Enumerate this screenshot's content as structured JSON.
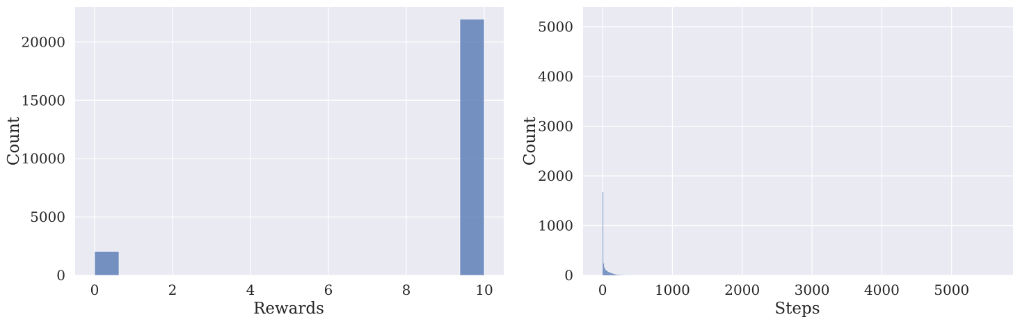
{
  "style": {
    "panel_bg": "#eaeaf2",
    "grid_color": "#ffffff",
    "bar_color": "#4c72b0",
    "bar_opacity": 0.75
  },
  "chart_data": [
    {
      "type": "bar",
      "subtype": "histogram",
      "title": "",
      "xlabel": "Rewards",
      "ylabel": "Count",
      "xlim": [
        -0.5,
        10.5
      ],
      "ylim": [
        0,
        23000
      ],
      "xticks": [
        0,
        2,
        4,
        6,
        8,
        10
      ],
      "yticks": [
        0,
        5000,
        10000,
        15000,
        20000
      ],
      "grid": true,
      "bins": [
        {
          "x0": 0.0,
          "x1": 0.625,
          "count": 2050
        },
        {
          "x0": 9.375,
          "x1": 10.0,
          "count": 21950
        }
      ]
    },
    {
      "type": "bar",
      "subtype": "histogram",
      "title": "",
      "xlabel": "Steps",
      "ylabel": "Count",
      "xlim": [
        -280,
        5880
      ],
      "ylim": [
        0,
        5400
      ],
      "xticks": [
        0,
        1000,
        2000,
        3000,
        4000,
        5000
      ],
      "yticks": [
        0,
        1000,
        2000,
        3000,
        4000,
        5000
      ],
      "grid": true,
      "bin_width": 10,
      "bins": [
        {
          "x0": 0,
          "count": 1680
        },
        {
          "x0": 10,
          "count": 240
        },
        {
          "x0": 20,
          "count": 160
        },
        {
          "x0": 30,
          "count": 130
        },
        {
          "x0": 40,
          "count": 110
        },
        {
          "x0": 50,
          "count": 95
        },
        {
          "x0": 60,
          "count": 85
        },
        {
          "x0": 70,
          "count": 75
        },
        {
          "x0": 80,
          "count": 70
        },
        {
          "x0": 90,
          "count": 60
        },
        {
          "x0": 100,
          "count": 55
        },
        {
          "x0": 110,
          "count": 50
        },
        {
          "x0": 120,
          "count": 45
        },
        {
          "x0": 130,
          "count": 40
        },
        {
          "x0": 140,
          "count": 35
        },
        {
          "x0": 150,
          "count": 30
        },
        {
          "x0": 160,
          "count": 25
        },
        {
          "x0": 170,
          "count": 22
        },
        {
          "x0": 180,
          "count": 18
        },
        {
          "x0": 190,
          "count": 15
        },
        {
          "x0": 200,
          "count": 12
        },
        {
          "x0": 210,
          "count": 10
        },
        {
          "x0": 220,
          "count": 9
        },
        {
          "x0": 230,
          "count": 8
        },
        {
          "x0": 240,
          "count": 7
        },
        {
          "x0": 250,
          "count": 6
        },
        {
          "x0": 260,
          "count": 5
        },
        {
          "x0": 270,
          "count": 4
        },
        {
          "x0": 280,
          "count": 4
        },
        {
          "x0": 290,
          "count": 3
        },
        {
          "x0": 300,
          "count": 3
        },
        {
          "x0": 320,
          "count": 2
        },
        {
          "x0": 340,
          "count": 2
        },
        {
          "x0": 360,
          "count": 2
        },
        {
          "x0": 380,
          "count": 1
        },
        {
          "x0": 400,
          "count": 1
        }
      ]
    }
  ]
}
